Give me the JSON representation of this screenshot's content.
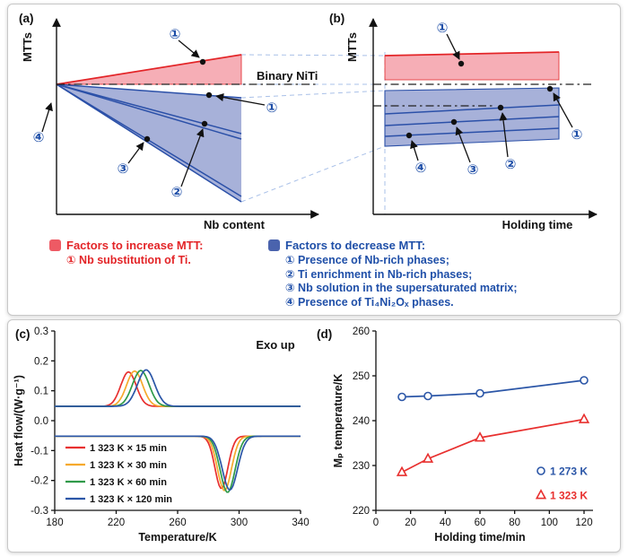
{
  "panels": {
    "a": {
      "label": "(a)",
      "ylabel": "MTTs",
      "xlabel": "Nb content",
      "ref_line_label": "Binary NiTi",
      "ann": {
        "inc": "①",
        "d1": "①",
        "d2": "②",
        "d3": "③",
        "d4": "④"
      }
    },
    "b": {
      "label": "(b)",
      "ylabel": "MTTs",
      "xlabel": "Holding time",
      "ann": {
        "inc": "①",
        "d1": "①",
        "d2": "②",
        "d3": "③",
        "d4": "④"
      }
    },
    "c": {
      "label": "(c)"
    },
    "d": {
      "label": "(d)"
    }
  },
  "legend": {
    "increase": {
      "title": "Factors to increase MTT:",
      "items": [
        "① Nb substitution of Ti."
      ]
    },
    "decrease": {
      "title": "Factors to decrease MTT:",
      "items": [
        "① Presence of Nb-rich phases;",
        "② Ti enrichment in Nb-rich phases;",
        "③ Nb solution in the supersaturated matrix;",
        "④ Presence of Ti₄Ni₂Oₓ phases."
      ]
    }
  },
  "colors": {
    "red": "#e32528",
    "blue": "#1f4fa8",
    "blue_line": "#2b50a8",
    "pink_fill": "#f6aeb6",
    "blue_fill": "#a7b1d9",
    "swatch_red": "#ee5a64",
    "swatch_blue": "#4a63ad"
  },
  "chart_data": [
    {
      "id": "dsc",
      "type": "line",
      "panel": "c",
      "annotation": "Exo up",
      "xlabel": "Temperature/K",
      "ylabel": "Heat flow/(W·g⁻¹)",
      "xlim": [
        180,
        340
      ],
      "ylim": [
        -0.3,
        0.3
      ],
      "xticks": [
        180,
        220,
        260,
        300,
        340
      ],
      "yticks": [
        -0.3,
        -0.2,
        -0.1,
        0,
        0.1,
        0.2,
        0.3
      ],
      "ytick_labels": [
        "-0.3",
        "-0.2",
        "-0.1",
        "0.0",
        "0.1",
        "0.2",
        "0.3"
      ],
      "legend_position": "lower-left",
      "series": [
        {
          "name": "1 323 K × 15 min",
          "color": "#e8302f",
          "upper_baseline": 0.048,
          "peak_center": 228,
          "peak_height": 0.115,
          "peak_sigma": 5.0,
          "lower_baseline": -0.052,
          "dip_center": 288.5,
          "dip_depth": 0.175,
          "dip_sigma": 4.2
        },
        {
          "name": "1 323 K × 30 min",
          "color": "#f6a92c",
          "upper_baseline": 0.048,
          "peak_center": 232,
          "peak_height": 0.118,
          "peak_sigma": 5.2,
          "lower_baseline": -0.052,
          "dip_center": 290.5,
          "dip_depth": 0.182,
          "dip_sigma": 4.5
        },
        {
          "name": "1 323 K × 60 min",
          "color": "#2f9a49",
          "upper_baseline": 0.048,
          "peak_center": 236,
          "peak_height": 0.12,
          "peak_sigma": 5.4,
          "lower_baseline": -0.052,
          "dip_center": 292.5,
          "dip_depth": 0.188,
          "dip_sigma": 4.8
        },
        {
          "name": "1 323 K × 120 min",
          "color": "#2b56a7",
          "upper_baseline": 0.048,
          "peak_center": 239.5,
          "peak_height": 0.122,
          "peak_sigma": 5.6,
          "lower_baseline": -0.052,
          "dip_center": 294,
          "dip_depth": 0.18,
          "dip_sigma": 5.0
        }
      ]
    },
    {
      "id": "mp",
      "type": "scatter-line",
      "panel": "d",
      "xlabel": "Holding time/min",
      "ylabel": "Mₚ temperature/K",
      "xlim": [
        0,
        120
      ],
      "ylim": [
        220,
        260
      ],
      "xticks": [
        0,
        20,
        40,
        60,
        80,
        100,
        120
      ],
      "yticks": [
        220,
        230,
        240,
        250,
        260
      ],
      "legend_position": "right",
      "series": [
        {
          "name": "1 273 K",
          "color": "#2b56a7",
          "marker": "circle",
          "x": [
            15,
            30,
            60,
            120
          ],
          "y": [
            245.3,
            245.5,
            246.1,
            249.0
          ]
        },
        {
          "name": "1 323 K",
          "color": "#e8302f",
          "marker": "triangle",
          "x": [
            15,
            30,
            60,
            120
          ],
          "y": [
            228.5,
            231.5,
            236.2,
            240.3
          ]
        }
      ]
    }
  ]
}
